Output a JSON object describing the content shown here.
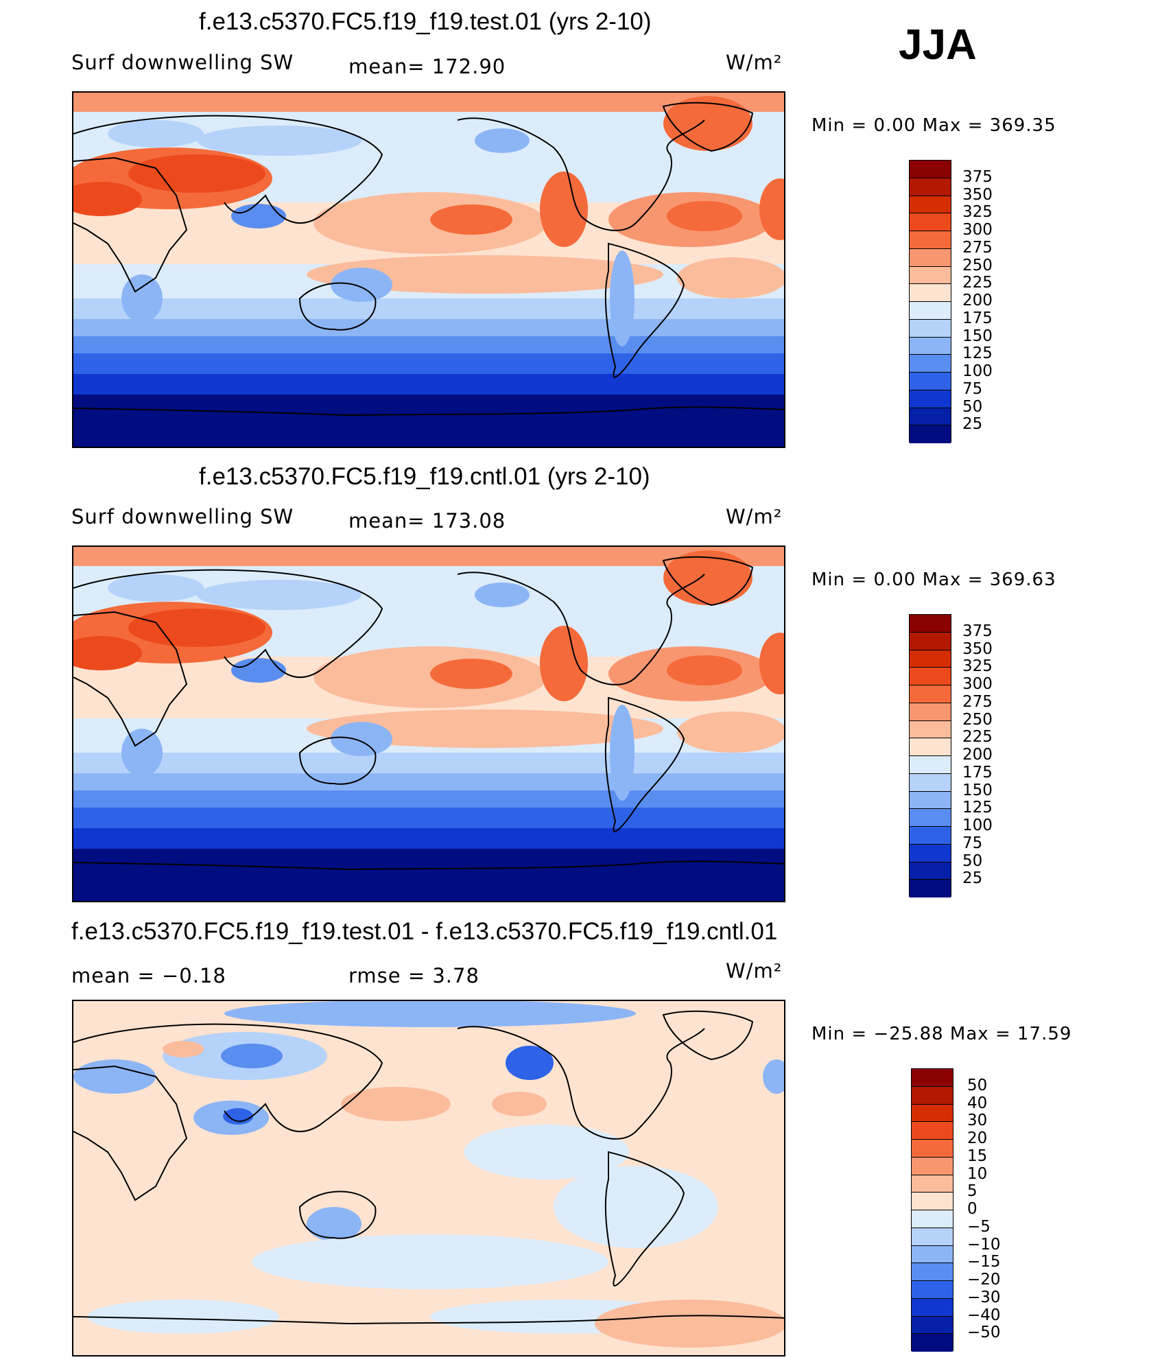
{
  "season": "JJA",
  "units_label": "W/m²",
  "panel_top": {
    "title": "f.e13.c5370.FC5.f19_f19.test.01 (yrs 2-10)",
    "variable": "Surf downwelling SW",
    "stat": "mean=  172.90",
    "minmax": "Min =     0.00  Max  =  369.35"
  },
  "panel_middle": {
    "title": "f.e13.c5370.FC5.f19_f19.cntl.01 (yrs 2-10)",
    "variable": "Surf downwelling SW",
    "stat": "mean=  173.08",
    "minmax": "Min =     0.00  Max  =  369.63"
  },
  "panel_diff": {
    "title": "f.e13.c5370.FC5.f19_f19.test.01 - f.e13.c5370.FC5.f19_f19.cntl.01",
    "stat_mean": "mean =    −0.18",
    "stat_rmse": "rmse =     3.78",
    "minmax": "Min = −25.88  Max =    17.59"
  },
  "colorbar_abs": {
    "labels": [
      "375",
      "350",
      "325",
      "300",
      "275",
      "250",
      "225",
      "200",
      "175",
      "150",
      "125",
      "100",
      "75",
      "50",
      "25"
    ],
    "colors": [
      "#8b0000",
      "#b31900",
      "#d42e00",
      "#ec4a1c",
      "#f56a3a",
      "#f89670",
      "#fbbc9c",
      "#fee3d0",
      "#dcecfb",
      "#b5d2fa",
      "#8cb5f6",
      "#5a8df0",
      "#2e63e8",
      "#1038d0",
      "#0420a8",
      "#000c80"
    ]
  },
  "colorbar_diff": {
    "labels": [
      "50",
      "40",
      "30",
      "20",
      "15",
      "10",
      "5",
      "0",
      "−5",
      "−10",
      "−15",
      "−20",
      "−30",
      "−40",
      "−50"
    ],
    "colors": [
      "#8b0000",
      "#b31900",
      "#d42e00",
      "#ec4a1c",
      "#f56a3a",
      "#f89670",
      "#fbbc9c",
      "#fee3d0",
      "#dcecfb",
      "#b5d2fa",
      "#8cb5f6",
      "#5a8df0",
      "#2e63e8",
      "#1038d0",
      "#0420a8",
      "#000c80"
    ]
  }
}
